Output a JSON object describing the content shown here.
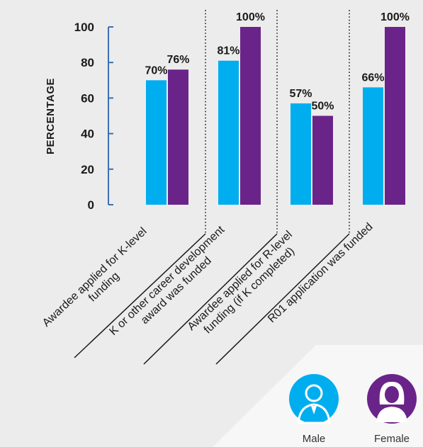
{
  "chart_data": {
    "type": "bar",
    "ylabel": "PERCENTAGE",
    "ylim": [
      0,
      100
    ],
    "yticks": [
      0,
      20,
      40,
      60,
      80,
      100
    ],
    "grid": false,
    "legend_placement": "bottom-right",
    "categories": [
      [
        "Awardee applied for K-level",
        "funding"
      ],
      [
        "K or other career development",
        "award was funded"
      ],
      [
        "Awardee applied for R-level",
        "funding (if K completed)"
      ],
      [
        "R01 application was funded"
      ]
    ],
    "series": [
      {
        "name": "Male",
        "color": "#00aeef",
        "values": [
          70,
          81,
          57,
          66
        ]
      },
      {
        "name": "Female",
        "color": "#6a2489",
        "values": [
          76,
          100,
          50,
          100
        ]
      }
    ]
  },
  "colors": {
    "axis": "#3b6fb5",
    "background": "#ececec",
    "legend_panel": "#f7f7f7"
  },
  "legend": {
    "male_icon": "male-user-icon",
    "female_icon": "female-user-icon"
  }
}
